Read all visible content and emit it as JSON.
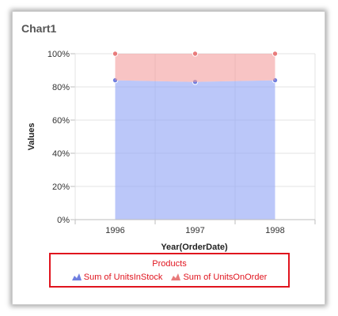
{
  "card": {
    "title": "Chart1"
  },
  "chart_data": {
    "type": "area",
    "stacking": "100%",
    "title": "",
    "xlabel": "Year(OrderDate)",
    "ylabel": "Values",
    "categories": [
      "1996",
      "1997",
      "1998"
    ],
    "y_ticks": [
      "0%",
      "20%",
      "40%",
      "60%",
      "80%",
      "100%"
    ],
    "ylim": [
      0,
      100
    ],
    "grid": true,
    "series": [
      {
        "name": "Sum of UnitsInStock",
        "values": [
          84,
          83,
          84
        ],
        "color": "#8da2f5",
        "marker": "#6f7fe0"
      },
      {
        "name": "Sum of UnitsOnOrder",
        "values": [
          16,
          17,
          16
        ],
        "color": "#f49c9c",
        "marker": "#e87b7b"
      }
    ],
    "legend": {
      "title": "Products",
      "position": "bottom"
    }
  }
}
